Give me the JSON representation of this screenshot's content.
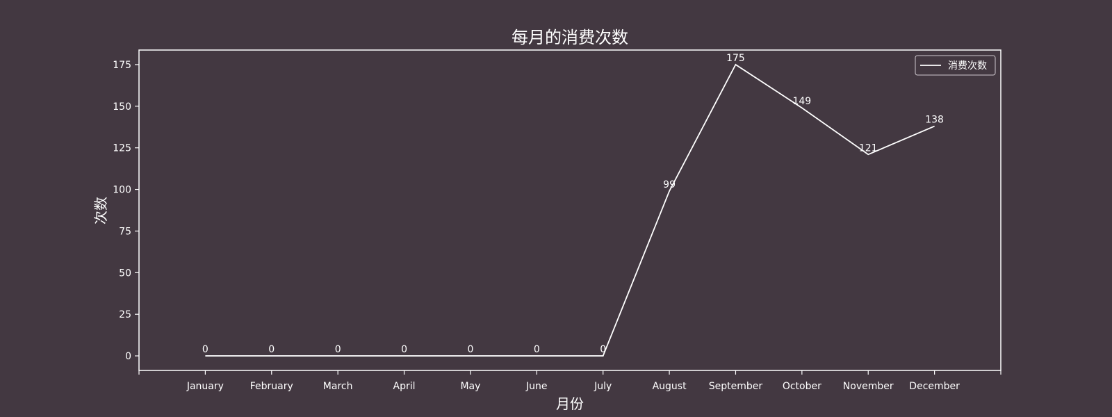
{
  "chart_data": {
    "type": "line",
    "title": "每月的消费次数",
    "xlabel": "月份",
    "ylabel": "次数",
    "categories": [
      "January",
      "February",
      "March",
      "April",
      "May",
      "June",
      "July",
      "August",
      "September",
      "October",
      "November",
      "December"
    ],
    "series": [
      {
        "name": "消费次数",
        "values": [
          0,
          0,
          0,
          0,
          0,
          0,
          0,
          99,
          175,
          149,
          121,
          138
        ],
        "color": "#ffffff"
      }
    ],
    "ylim": [
      -8.75,
      183.75
    ],
    "yticks": [
      0,
      25,
      50,
      75,
      100,
      125,
      150,
      175
    ],
    "grid": false,
    "legend": "top-right",
    "data_labels": true
  },
  "colors": {
    "background": "#433841",
    "foreground": "#ffffff"
  }
}
